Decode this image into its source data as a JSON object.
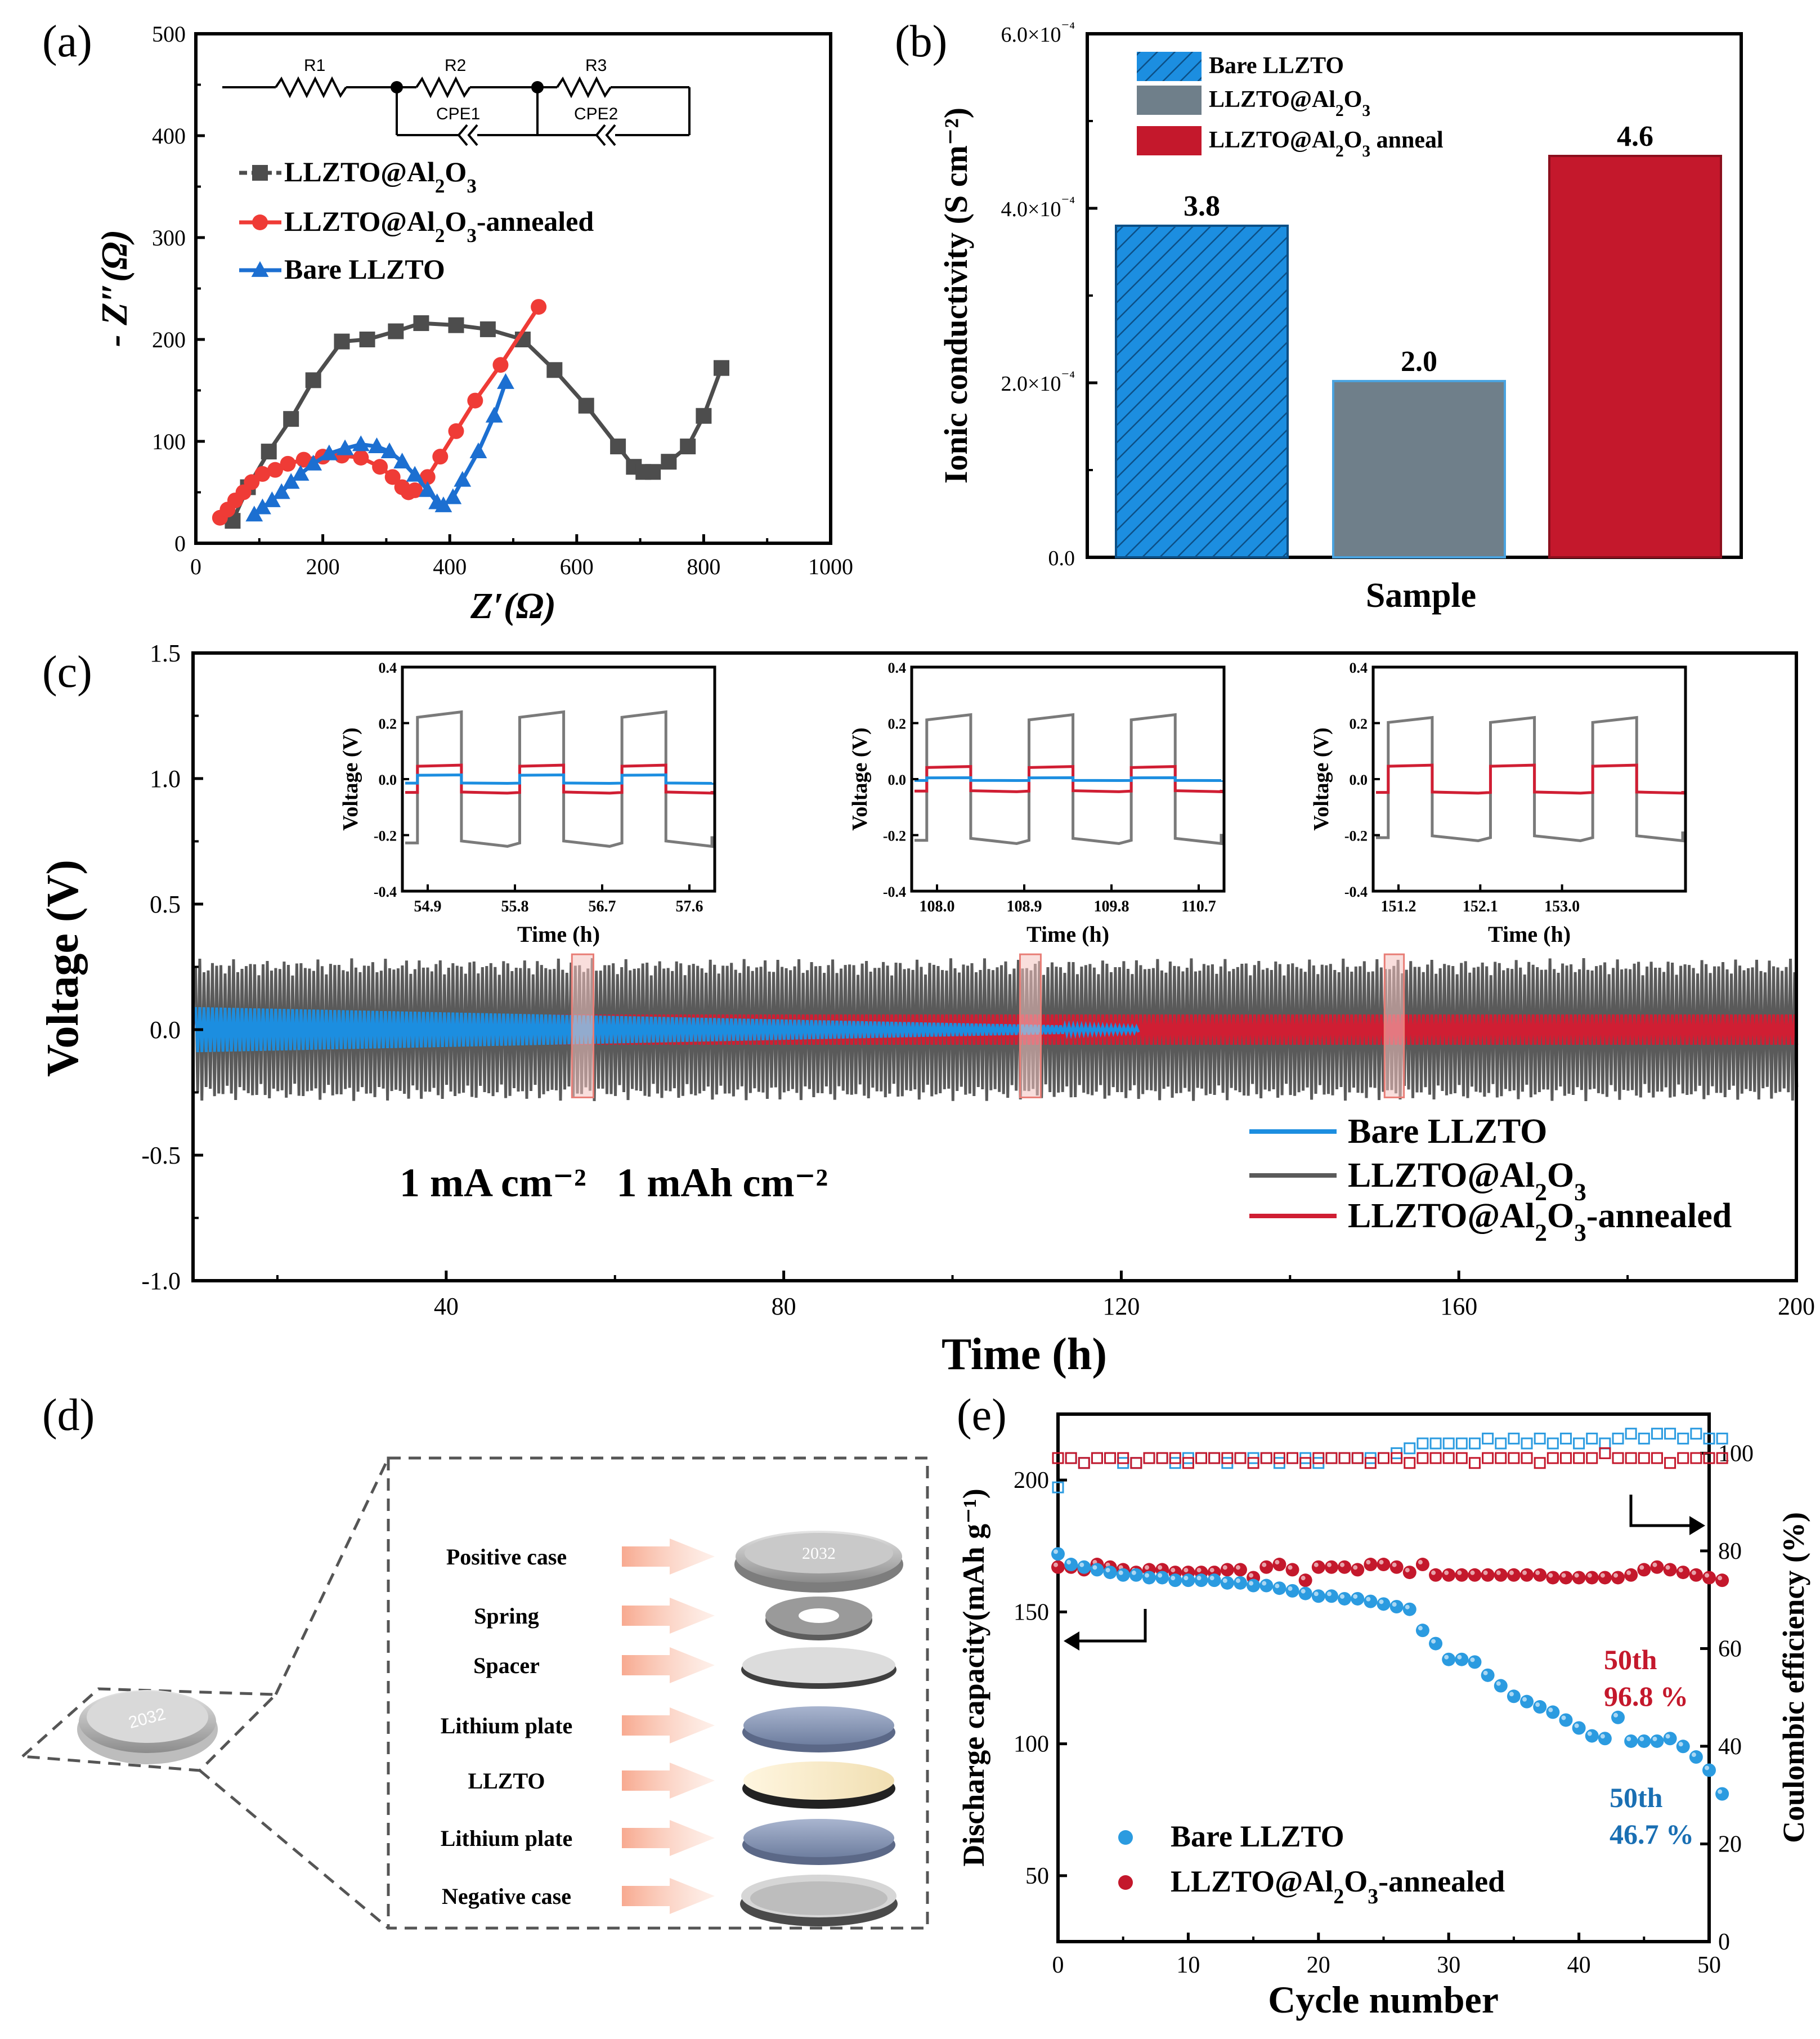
{
  "chart_data": [
    {
      "panel": "(a)",
      "type": "scatter",
      "xlabel": "Z′(Ω)",
      "ylabel": "- Z″(Ω)",
      "xlim": [
        0,
        1000
      ],
      "ylim": [
        0,
        500
      ],
      "xticks": [
        "0",
        "200",
        "400",
        "600",
        "800",
        "1000"
      ],
      "yticks": [
        "0",
        "100",
        "200",
        "300",
        "400",
        "500"
      ],
      "circuit": {
        "r1": "R1",
        "r2": "R2",
        "r3": "R3",
        "cpe1": "CPE1",
        "cpe2": "CPE2"
      },
      "legend": [
        "LLZTO@Al2O3",
        "LLZTO@Al2O3-annealed",
        "Bare LLZTO"
      ],
      "legend_parts": [
        {
          "pre": "LLZTO@Al",
          "sub1": "2",
          "mid": "O",
          "sub2": "3",
          "post": ""
        },
        {
          "pre": "LLZTO@Al",
          "sub1": "2",
          "mid": "O",
          "sub2": "3",
          "post": "-annealed"
        },
        {
          "pre": "Bare LLZTO",
          "sub1": "",
          "mid": "",
          "sub2": "",
          "post": ""
        }
      ],
      "series": [
        {
          "name": "LLZTO@Al2O3",
          "color": "#4d4d4d",
          "marker": "square",
          "x": [
            58,
            82,
            115,
            150,
            185,
            230,
            270,
            315,
            355,
            410,
            460,
            515,
            565,
            615,
            665,
            690,
            705,
            720,
            745,
            775,
            800,
            828
          ],
          "y": [
            22,
            55,
            90,
            122,
            160,
            198,
            200,
            208,
            216,
            214,
            210,
            200,
            170,
            135,
            95,
            75,
            70,
            70,
            80,
            95,
            125,
            172
          ]
        },
        {
          "name": "LLZTO@Al2O3-annealed",
          "color": "#ef3b36",
          "marker": "circle",
          "x": [
            38,
            50,
            62,
            75,
            88,
            105,
            125,
            145,
            170,
            200,
            230,
            260,
            290,
            310,
            325,
            335,
            345,
            365,
            385,
            410,
            440,
            480,
            540
          ],
          "y": [
            25,
            33,
            42,
            50,
            60,
            68,
            72,
            78,
            82,
            85,
            86,
            84,
            75,
            65,
            55,
            50,
            52,
            65,
            85,
            110,
            140,
            175,
            232
          ]
        },
        {
          "name": "Bare LLZTO",
          "color": "#1c6fd1",
          "marker": "triangle",
          "x": [
            92,
            105,
            120,
            135,
            150,
            165,
            185,
            210,
            235,
            260,
            285,
            305,
            325,
            345,
            365,
            380,
            390,
            405,
            420,
            445,
            470,
            488
          ],
          "y": [
            28,
            35,
            42,
            50,
            60,
            68,
            78,
            88,
            93,
            97,
            95,
            90,
            80,
            67,
            52,
            40,
            37,
            45,
            62,
            90,
            125,
            158
          ]
        }
      ]
    },
    {
      "panel": "(b)",
      "type": "bar",
      "xlabel": "Sample",
      "ylabel": "Ionic conductivity (S cm⁻²)",
      "ylim": [
        0,
        0.0006
      ],
      "yticks": [
        "0.0",
        "2.0×10⁻⁴",
        "4.0×10⁻⁴",
        "6.0×10⁻⁴"
      ],
      "categories": [
        "Bare LLZTO",
        "LLZTO@Al2O3",
        "LLZTO@Al2O3 anneal"
      ],
      "legend_parts": [
        {
          "pre": "Bare LLZTO",
          "sub1": "",
          "mid": "",
          "sub2": "",
          "post": ""
        },
        {
          "pre": "LLZTO@Al",
          "sub1": "2",
          "mid": "O",
          "sub2": "3",
          "post": ""
        },
        {
          "pre": "LLZTO@Al",
          "sub1": "2",
          "mid": "O",
          "sub2": "3",
          "post": " anneal"
        }
      ],
      "values": [
        0.00038,
        0.000202,
        0.00046
      ],
      "labels": [
        "3.8",
        "2.0",
        "4.6"
      ],
      "colors": [
        "#1c8ee0",
        "#6f7f8a",
        "#c4182c"
      ]
    },
    {
      "panel": "(c)",
      "type": "line",
      "xlabel": "Time (h)",
      "ylabel": "Voltage (V)",
      "xlim": [
        10,
        200
      ],
      "ylim": [
        -1.0,
        1.5
      ],
      "xticks": [
        "40",
        "80",
        "120",
        "160",
        "200"
      ],
      "yticks": [
        "-1.0",
        "-0.5",
        "0.0",
        "0.5",
        "1.0",
        "1.5"
      ],
      "annotation": "1 mA cm⁻²   1 mAh cm⁻²",
      "legend": [
        "Bare LLZTO",
        "LLZTO@Al2O3",
        "LLZTO@Al2O3-annealed"
      ],
      "legend_parts": [
        {
          "pre": "Bare LLZTO",
          "sub1": "",
          "mid": "",
          "sub2": "",
          "post": ""
        },
        {
          "pre": "LLZTO@Al",
          "sub1": "2",
          "mid": "O",
          "sub2": "3",
          "post": ""
        },
        {
          "pre": "LLZTO@Al",
          "sub1": "2",
          "mid": "O",
          "sub2": "3",
          "post": "-annealed"
        }
      ],
      "series": [
        {
          "name": "Bare LLZTO",
          "color": "#1c8ee0",
          "amplitude_start": 0.09,
          "amplitude_end": 0.01,
          "t_end": 122
        },
        {
          "name": "LLZTO@Al2O3",
          "color": "#5a5a5a",
          "amplitude": 0.25,
          "t_end": 200
        },
        {
          "name": "LLZTO@Al2O3-annealed",
          "color": "#d01e33",
          "amplitude": 0.06,
          "t_end": 200
        }
      ],
      "highlight_windows": [
        [
          54.9,
          57.9
        ],
        [
          108.0,
          110.9
        ],
        [
          151.2,
          153.9
        ]
      ],
      "insets": [
        {
          "xticks": [
            "54.9",
            "55.8",
            "56.7",
            "57.6"
          ],
          "xlabel": "Time (h)",
          "ylabel": "Voltage (V)",
          "yticks": [
            "-0.4",
            "-0.2",
            "0.0",
            "0.2",
            "0.4"
          ],
          "gray": 0.24,
          "red": 0.05,
          "blue": 0.015
        },
        {
          "xticks": [
            "108.0",
            "108.9",
            "109.8",
            "110.7"
          ],
          "xlabel": "Time (h)",
          "ylabel": "Voltage (V)",
          "yticks": [
            "-0.4",
            "-0.2",
            "0.0",
            "0.2",
            "0.4"
          ],
          "gray": 0.23,
          "red": 0.045,
          "blue": 0.005
        },
        {
          "xticks": [
            "151.2",
            "152.1",
            "153.0"
          ],
          "xlabel": "Time (h)",
          "ylabel": "Voltage (V)",
          "yticks": [
            "-0.4",
            "-0.2",
            "0.0",
            "0.2",
            "0.4"
          ],
          "gray": 0.22,
          "red": 0.05,
          "blue": null
        }
      ]
    },
    {
      "panel": "(e)",
      "type": "scatter",
      "xlabel": "Cycle number",
      "ylabel_left": "Discharge capacity(mAh g⁻¹)",
      "ylabel_right": "Coulombic efficiency (%)",
      "xlim": [
        0,
        50
      ],
      "ylim_left": [
        25,
        225
      ],
      "ylim_right": [
        0,
        108
      ],
      "xticks": [
        "0",
        "10",
        "20",
        "30",
        "40",
        "50"
      ],
      "yticks_left": [
        "50",
        "100",
        "150",
        "200"
      ],
      "yticks_right": [
        "0",
        "20",
        "40",
        "60",
        "80",
        "100"
      ],
      "legend": [
        "Bare LLZTO",
        "LLZTO@Al2O3-annealed"
      ],
      "legend_parts": [
        {
          "pre": "Bare LLZTO",
          "sub1": "",
          "mid": "",
          "sub2": "",
          "post": ""
        },
        {
          "pre": "LLZTO@Al",
          "sub1": "2",
          "mid": "O",
          "sub2": "3",
          "post": "-annealed"
        }
      ],
      "annotations": [
        {
          "text": "50th",
          "color": "#c4182c"
        },
        {
          "text": "96.8 %",
          "color": "#c4182c"
        },
        {
          "text": "50th",
          "color": "#1a6fb3"
        },
        {
          "text": "46.7 %",
          "color": "#1a6fb3"
        }
      ],
      "series": [
        {
          "name": "Bare LLZTO capacity",
          "color": "#2b9be0",
          "y": [
            172,
            168,
            167,
            166,
            165,
            164,
            164,
            163,
            163,
            162,
            162,
            162,
            162,
            161,
            161,
            160,
            160,
            159,
            158,
            157,
            156,
            156,
            155,
            155,
            154,
            153,
            152,
            151,
            143,
            138,
            132,
            132,
            131,
            126,
            122,
            118,
            116,
            114,
            112,
            109,
            106,
            103,
            102,
            110,
            101,
            101,
            101,
            102,
            99,
            95,
            90,
            81
          ]
        },
        {
          "name": "LLZTO@Al2O3-annealed capacity",
          "color": "#c4182c",
          "y": [
            167,
            167,
            166,
            168,
            167,
            166,
            165,
            166,
            166,
            165,
            165,
            165,
            165,
            166,
            166,
            163,
            167,
            168,
            166,
            162,
            167,
            167,
            167,
            166,
            168,
            168,
            167,
            165,
            168,
            164,
            164,
            164,
            164,
            164,
            164,
            164,
            164,
            164,
            163,
            163,
            163,
            163,
            163,
            163,
            164,
            166,
            167,
            166,
            165,
            164,
            163,
            162
          ]
        },
        {
          "name": "Bare LLZTO CE",
          "color": "#2b9be0",
          "y": [
            93,
            99,
            98,
            99,
            99,
            98,
            98,
            99,
            99,
            98,
            99,
            99,
            99,
            98,
            99,
            99,
            99,
            98,
            99,
            99,
            98,
            99,
            99,
            99,
            99,
            99,
            100,
            101,
            102,
            102,
            102,
            102,
            102,
            103,
            102,
            103,
            102,
            103,
            102,
            103,
            102,
            103,
            102,
            103,
            104,
            103,
            104,
            104,
            103,
            104,
            103,
            103
          ]
        },
        {
          "name": "LLZTO@Al2O3-annealed CE",
          "color": "#c4182c",
          "y": [
            99,
            99,
            98,
            99,
            99,
            99,
            98,
            99,
            99,
            99,
            98,
            99,
            99,
            99,
            99,
            98,
            99,
            99,
            99,
            98,
            99,
            99,
            99,
            99,
            98,
            99,
            99,
            98,
            99,
            99,
            99,
            99,
            98,
            99,
            99,
            99,
            99,
            98,
            99,
            99,
            99,
            99,
            100,
            99,
            99,
            99,
            99,
            98,
            99,
            99,
            99,
            99
          ]
        }
      ]
    }
  ],
  "panel_d": {
    "label": "(d)",
    "coin_text": "2032",
    "components": [
      "Positive case",
      "Spring",
      "Spacer",
      "Lithium plate",
      "LLZTO",
      "Lithium plate",
      "Negative case"
    ]
  },
  "panel_labels": [
    "(a)",
    "(b)",
    "(c)",
    "(d)",
    "(e)"
  ]
}
